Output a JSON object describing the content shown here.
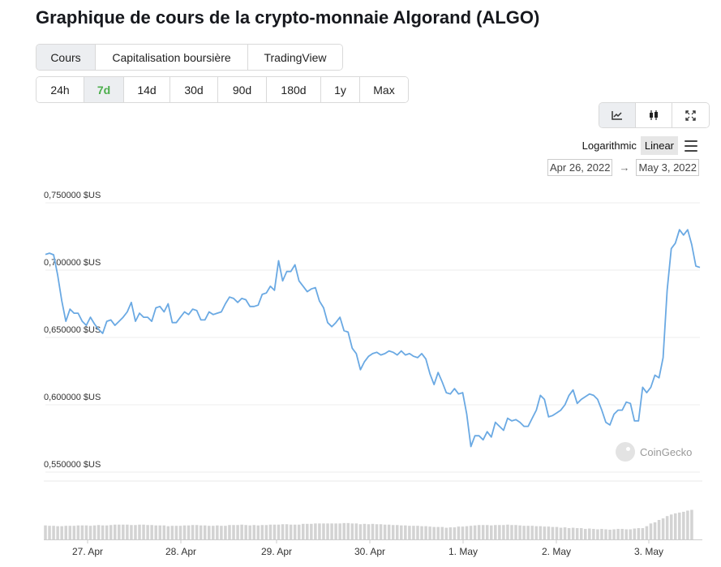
{
  "title": "Graphique de cours de la crypto-monnaie Algorand (ALGO)",
  "view_tabs": [
    {
      "label": "Cours",
      "active": true
    },
    {
      "label": "Capitalisation boursière",
      "active": false
    },
    {
      "label": "TradingView",
      "active": false
    }
  ],
  "range_tabs": [
    {
      "label": "24h",
      "active": false
    },
    {
      "label": "7d",
      "active": true
    },
    {
      "label": "14d",
      "active": false
    },
    {
      "label": "30d",
      "active": false
    },
    {
      "label": "90d",
      "active": false
    },
    {
      "label": "180d",
      "active": false
    },
    {
      "label": "1y",
      "active": false
    },
    {
      "label": "Max",
      "active": false
    }
  ],
  "chart_tools": [
    {
      "icon": "line-chart-icon",
      "active": true
    },
    {
      "icon": "candlestick-icon",
      "active": false
    },
    {
      "icon": "fullscreen-icon",
      "active": false
    }
  ],
  "scale": {
    "logarithmic": "Logarithmic",
    "linear": "Linear",
    "active": "Linear"
  },
  "date_range": {
    "from": "Apr 26, 2022",
    "to": "May 3, 2022",
    "arrow": "→"
  },
  "watermark": "CoinGecko",
  "colors": {
    "line": "#6aa9e3",
    "volume": "#d3d3d3",
    "grid": "#ececec",
    "active_range": "#4cae4c"
  },
  "chart_data": {
    "type": "line",
    "x_ticks": [
      "27. Apr",
      "28. Apr",
      "29. Apr",
      "30. Apr",
      "1. May",
      "2. May",
      "3. May"
    ],
    "y_ticks": [
      "0,750000 $US",
      "0,700000 $US",
      "0,650000 $US",
      "0,600000 $US",
      "0,550000 $US"
    ],
    "y_tick_values": [
      0.75,
      0.7,
      0.65,
      0.6,
      0.55
    ],
    "ylim": [
      0.55,
      0.75
    ],
    "grid": true,
    "series": [
      {
        "values": [
          0.7116,
          0.7126,
          0.7114,
          0.6963,
          0.6771,
          0.662,
          0.671,
          0.668,
          0.668,
          0.662,
          0.659,
          0.665,
          0.66,
          0.656,
          0.653,
          0.662,
          0.663,
          0.659,
          0.662,
          0.665,
          0.669,
          0.676,
          0.662,
          0.668,
          0.665,
          0.665,
          0.662,
          0.672,
          0.673,
          0.669,
          0.675,
          0.661,
          0.661,
          0.665,
          0.669,
          0.667,
          0.671,
          0.67,
          0.663,
          0.663,
          0.669,
          0.667,
          0.668,
          0.669,
          0.675,
          0.68,
          0.679,
          0.676,
          0.679,
          0.678,
          0.673,
          0.673,
          0.674,
          0.682,
          0.683,
          0.688,
          0.685,
          0.707,
          0.692,
          0.699,
          0.699,
          0.704,
          0.692,
          0.688,
          0.684,
          0.686,
          0.687,
          0.677,
          0.672,
          0.661,
          0.658,
          0.661,
          0.665,
          0.655,
          0.654,
          0.642,
          0.638,
          0.626,
          0.632,
          0.636,
          0.638,
          0.639,
          0.637,
          0.638,
          0.64,
          0.639,
          0.637,
          0.64,
          0.637,
          0.638,
          0.636,
          0.635,
          0.638,
          0.634,
          0.623,
          0.615,
          0.624,
          0.617,
          0.609,
          0.608,
          0.612,
          0.608,
          0.609,
          0.593,
          0.569,
          0.577,
          0.577,
          0.574,
          0.58,
          0.576,
          0.587,
          0.584,
          0.581,
          0.59,
          0.588,
          0.589,
          0.587,
          0.584,
          0.584,
          0.59,
          0.596,
          0.607,
          0.604,
          0.591,
          0.592,
          0.594,
          0.596,
          0.6,
          0.607,
          0.611,
          0.601,
          0.604,
          0.606,
          0.608,
          0.607,
          0.604,
          0.596,
          0.587,
          0.585,
          0.593,
          0.596,
          0.596,
          0.602,
          0.601,
          0.588,
          0.588,
          0.613,
          0.609,
          0.613,
          0.622,
          0.62,
          0.635,
          0.685,
          0.716,
          0.72,
          0.73,
          0.726,
          0.73,
          0.719,
          0.703,
          0.702
        ]
      }
    ],
    "volume": [
      0.36,
      0.35,
      0.35,
      0.34,
      0.34,
      0.35,
      0.35,
      0.35,
      0.36,
      0.36,
      0.36,
      0.35,
      0.36,
      0.37,
      0.36,
      0.36,
      0.37,
      0.38,
      0.38,
      0.38,
      0.38,
      0.37,
      0.37,
      0.38,
      0.38,
      0.37,
      0.37,
      0.36,
      0.36,
      0.36,
      0.34,
      0.35,
      0.35,
      0.35,
      0.36,
      0.36,
      0.37,
      0.37,
      0.36,
      0.36,
      0.35,
      0.35,
      0.36,
      0.35,
      0.35,
      0.37,
      0.37,
      0.37,
      0.38,
      0.37,
      0.36,
      0.37,
      0.36,
      0.37,
      0.37,
      0.38,
      0.38,
      0.38,
      0.39,
      0.39,
      0.38,
      0.38,
      0.38,
      0.4,
      0.4,
      0.4,
      0.41,
      0.41,
      0.41,
      0.41,
      0.41,
      0.41,
      0.41,
      0.42,
      0.42,
      0.41,
      0.41,
      0.39,
      0.4,
      0.39,
      0.4,
      0.39,
      0.39,
      0.38,
      0.38,
      0.37,
      0.37,
      0.36,
      0.36,
      0.35,
      0.35,
      0.35,
      0.34,
      0.34,
      0.33,
      0.32,
      0.32,
      0.32,
      0.3,
      0.31,
      0.31,
      0.33,
      0.33,
      0.34,
      0.35,
      0.36,
      0.37,
      0.37,
      0.37,
      0.36,
      0.37,
      0.37,
      0.37,
      0.38,
      0.37,
      0.37,
      0.36,
      0.35,
      0.35,
      0.35,
      0.34,
      0.34,
      0.33,
      0.33,
      0.32,
      0.32,
      0.3,
      0.31,
      0.29,
      0.3,
      0.29,
      0.29,
      0.27,
      0.28,
      0.27,
      0.26,
      0.27,
      0.26,
      0.25,
      0.26,
      0.27,
      0.27,
      0.26,
      0.26,
      0.28,
      0.29,
      0.29,
      0.34,
      0.41,
      0.44,
      0.5,
      0.54,
      0.6,
      0.64,
      0.67,
      0.69,
      0.71,
      0.74,
      0.76
    ]
  }
}
